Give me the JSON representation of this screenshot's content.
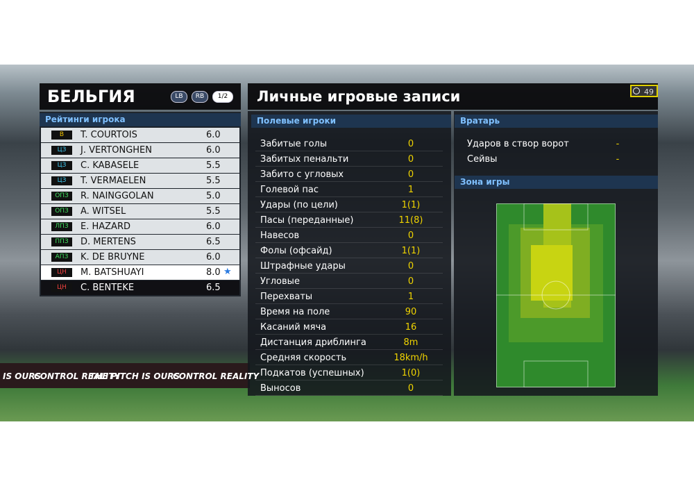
{
  "left": {
    "title": "БЕЛЬГИЯ",
    "buttons": [
      "LB",
      "RB",
      "1/2"
    ],
    "subtitle": "Рейтинги игрока",
    "players": [
      {
        "pos": "В",
        "name": "T. COURTOIS",
        "rating": "6.0"
      },
      {
        "pos": "ЦЗ",
        "name": "J. VERTONGHEN",
        "rating": "6.0"
      },
      {
        "pos": "ЦЗ",
        "name": "C. KABASELE",
        "rating": "5.5"
      },
      {
        "pos": "ЦЗ",
        "name": "T. VERMAELEN",
        "rating": "5.5"
      },
      {
        "pos": "ОПЗ",
        "name": "R. NAINGGOLAN",
        "rating": "5.0"
      },
      {
        "pos": "ОПЗ",
        "name": "A. WITSEL",
        "rating": "5.5"
      },
      {
        "pos": "ЛПЗ",
        "name": "E. HAZARD",
        "rating": "6.0"
      },
      {
        "pos": "ППЗ",
        "name": "D. MERTENS",
        "rating": "6.5"
      },
      {
        "pos": "АПЗ",
        "name": "K. DE BRUYNE",
        "rating": "6.0"
      },
      {
        "pos": "ЦН",
        "name": "M. BATSHUAYI",
        "rating": "8.0"
      },
      {
        "pos": "ЦН",
        "name": "C. BENTEKE",
        "rating": "6.5"
      }
    ]
  },
  "right": {
    "title": "Личные игровые записи",
    "timer": "49",
    "field": {
      "header": "Полевые игроки",
      "stats": [
        [
          "Забитые голы",
          "0"
        ],
        [
          "Забитых пенальти",
          "0"
        ],
        [
          "Забито с угловых",
          "0"
        ],
        [
          "Голевой пас",
          "1"
        ],
        [
          "Удары (по цели)",
          "1(1)"
        ],
        [
          "Пасы (переданные)",
          "11(8)"
        ],
        [
          "Навесов",
          "0"
        ],
        [
          "Фолы (офсайд)",
          "1(1)"
        ],
        [
          "Штрафные удары",
          "0"
        ],
        [
          "Угловые",
          "0"
        ],
        [
          "Перехваты",
          "1"
        ],
        [
          "Время на поле",
          "90"
        ],
        [
          "Касаний мяча",
          "16"
        ],
        [
          "Дистанция дриблинга",
          "8m"
        ],
        [
          "Средняя скорость",
          "18km/h"
        ],
        [
          "Подкатов (успешных)",
          "1(0)"
        ],
        [
          "Выносов",
          "0"
        ]
      ]
    },
    "goalkeeper": {
      "header": "Вратарь",
      "stats": [
        [
          "Ударов в створ ворот",
          "-"
        ],
        [
          "Сейвы",
          "-"
        ]
      ]
    },
    "zone": "Зона игры"
  },
  "ads": [
    "IS OURS",
    "CONTROL REALITY",
    "THE PITCH IS OURS",
    "CONTROL REALITY"
  ]
}
